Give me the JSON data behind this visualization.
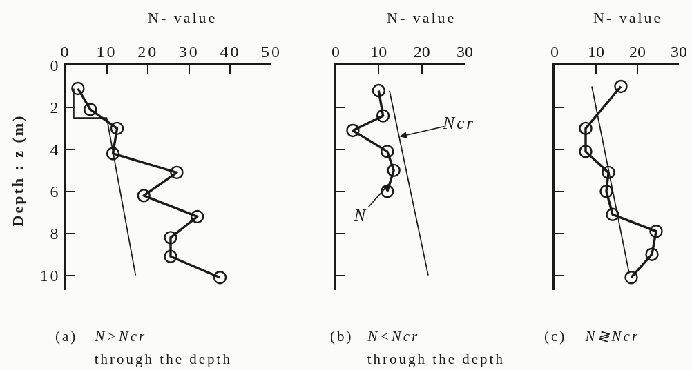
{
  "chart_data": [
    {
      "type": "line",
      "xlabel": "N- value",
      "ylabel": "Depth : z (m)",
      "xlim": [
        0,
        50
      ],
      "xticks": [
        0,
        10,
        20,
        30,
        40,
        50
      ],
      "ylim": [
        10.7,
        0
      ],
      "yticks": [
        0,
        2,
        4,
        6,
        8,
        10
      ],
      "grid": false,
      "series": [
        {
          "color": "#1a1a1a",
          "marker": "circle",
          "x": [
            3,
            6,
            12.5,
            11.5,
            27,
            19,
            32,
            25.5,
            25.5,
            37.5
          ],
          "values": [
            1.1,
            2.1,
            3.0,
            4.2,
            5.1,
            6.2,
            7.2,
            8.2,
            9.1,
            10.1
          ]
        },
        {
          "color": "#1a1a1a",
          "marker": "none",
          "x": [
            2,
            2,
            10,
            17
          ],
          "values": [
            1.1,
            2.5,
            2.5,
            10.0
          ]
        }
      ],
      "annotations": [
        "(a)",
        "N>Ncr\nthrough the depth"
      ]
    },
    {
      "type": "line",
      "xlabel": "N- value",
      "xlim": [
        0,
        30
      ],
      "xticks": [
        0,
        10,
        20,
        30
      ],
      "ylim": [
        10.7,
        0
      ],
      "yticks": [
        0,
        2,
        4,
        6,
        8,
        10
      ],
      "tick_labels": "x",
      "grid": false,
      "series": [
        {
          "color": "#1a1a1a",
          "marker": "circle",
          "x": [
            10,
            11,
            4,
            12,
            13.5,
            12
          ],
          "values": [
            1.2,
            2.4,
            3.1,
            4.1,
            5.0,
            6.0
          ]
        },
        {
          "color": "#1a1a1a",
          "marker": "none",
          "x": [
            12.5,
            21.5
          ],
          "values": [
            1.2,
            10.0
          ]
        }
      ],
      "annotations": [
        {
          "text": "Ncr",
          "x": 14.7,
          "y": 3.4
        },
        {
          "text": "N",
          "x": 12.6,
          "y": 5.6
        },
        "(b)",
        "N<Ncr\nthrough the depth"
      ]
    },
    {
      "type": "line",
      "xlabel": "N- value",
      "xlim": [
        0,
        30
      ],
      "xticks": [
        0,
        10,
        20,
        30
      ],
      "ylim": [
        10.7,
        0
      ],
      "yticks": [
        0,
        2,
        4,
        6,
        8,
        10
      ],
      "tick_labels": "x",
      "grid": false,
      "series": [
        {
          "color": "#1a1a1a",
          "marker": "circle",
          "x": [
            16,
            7.5,
            7.5,
            13,
            12.5,
            14,
            24.5,
            23.5,
            18.5
          ],
          "values": [
            1.0,
            3.0,
            4.1,
            5.1,
            6.0,
            7.1,
            7.9,
            9.0,
            10.1
          ]
        },
        {
          "color": "#1a1a1a",
          "marker": "none",
          "x": [
            9,
            18
          ],
          "values": [
            1.0,
            9.9
          ]
        }
      ],
      "annotations": [
        "(c)",
        "N≷Ncr"
      ]
    }
  ]
}
